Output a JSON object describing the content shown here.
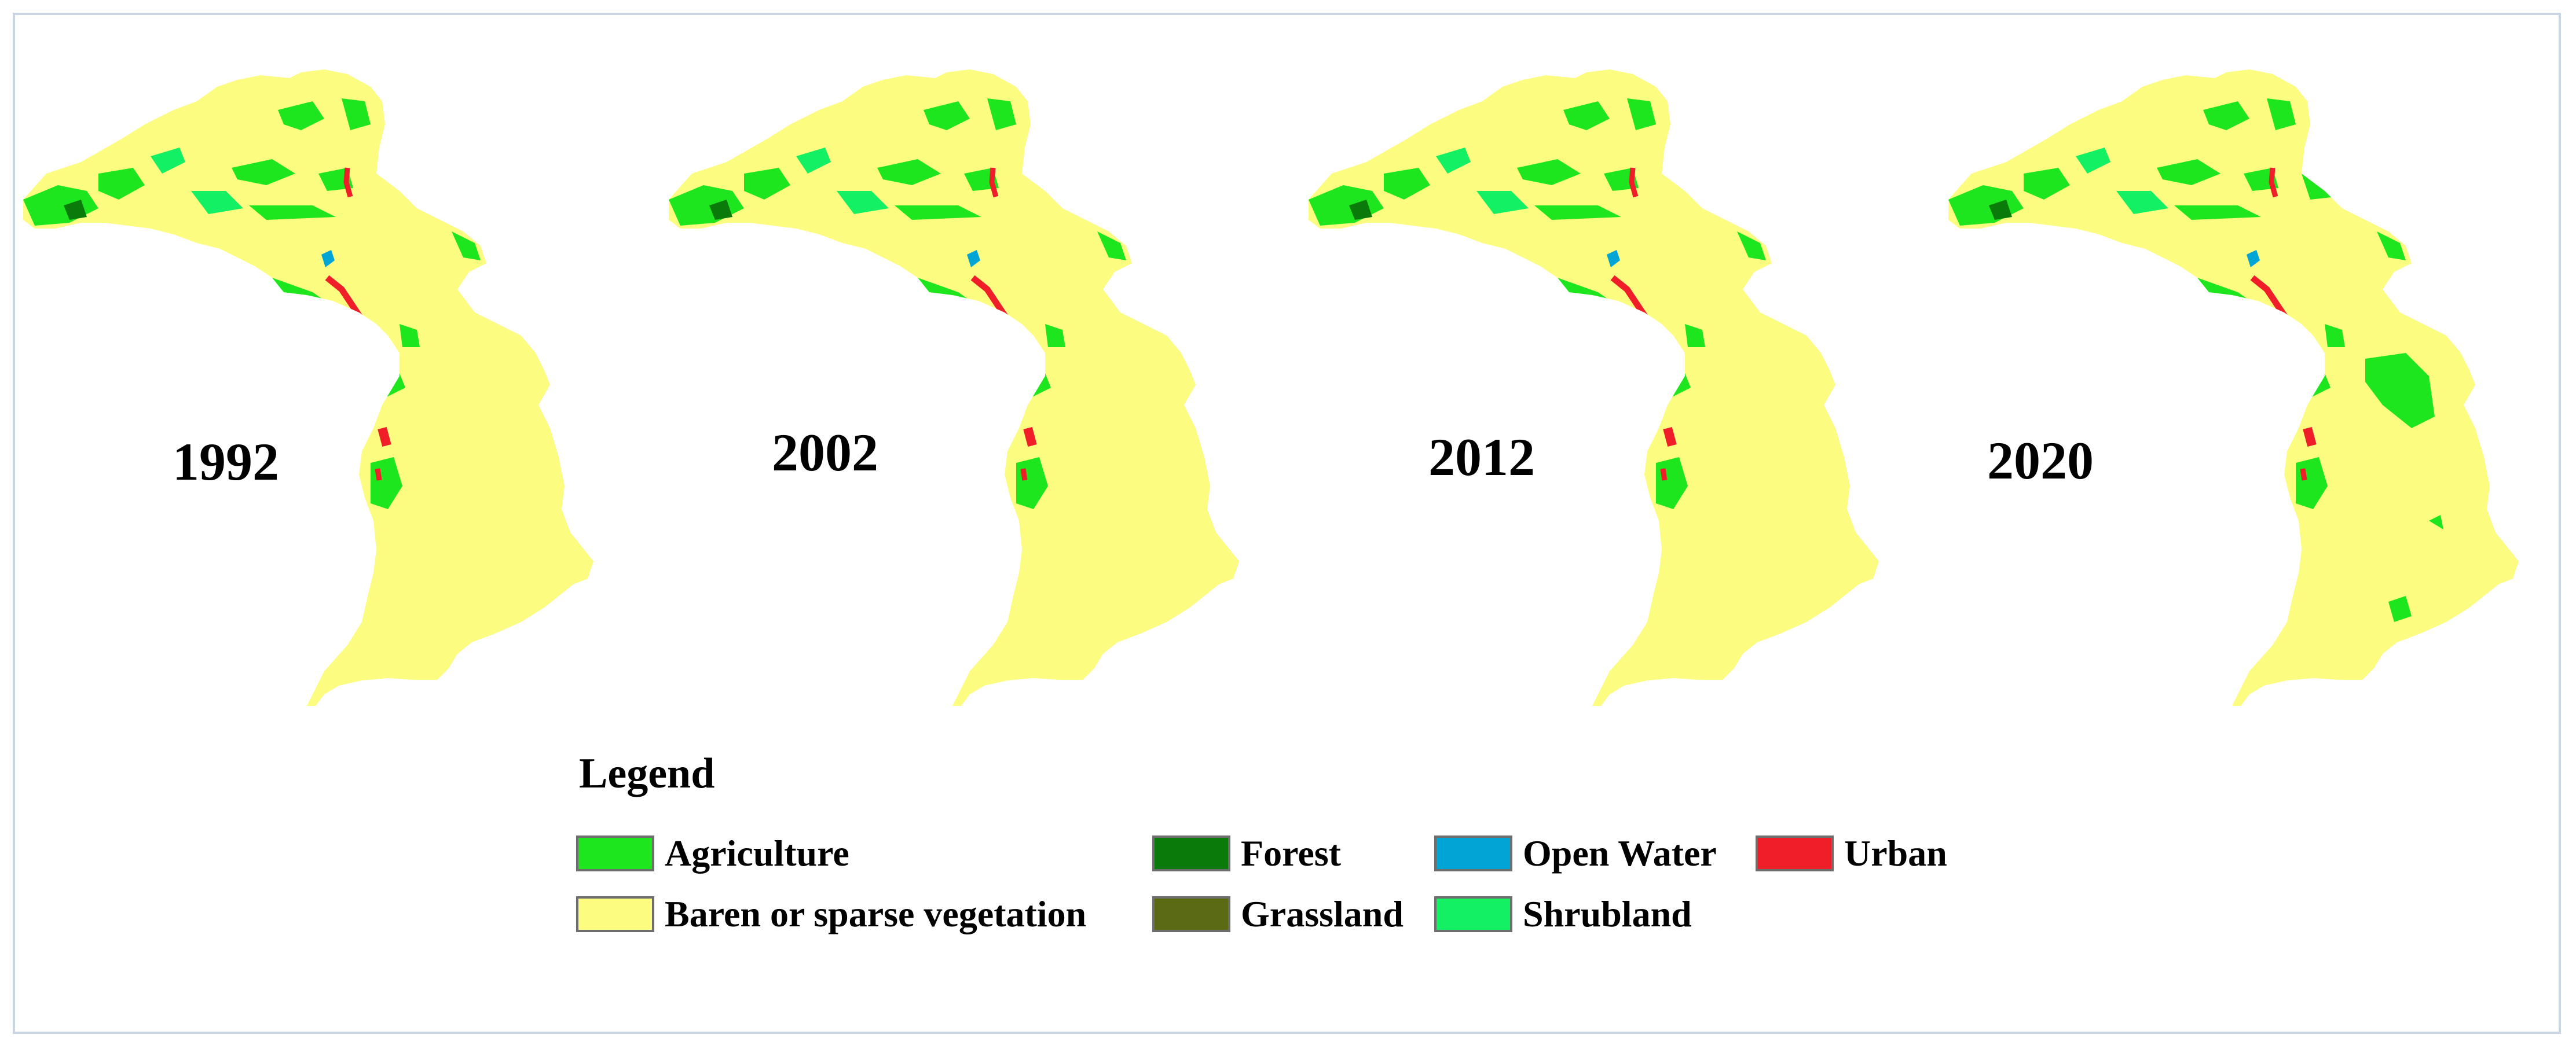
{
  "maps": [
    {
      "year": "1992"
    },
    {
      "year": "2002"
    },
    {
      "year": "2012"
    },
    {
      "year": "2020"
    }
  ],
  "legend": {
    "title": "Legend",
    "items": [
      {
        "label": "Agriculture",
        "color": "#1ee61e"
      },
      {
        "label": "Forest",
        "color": "#0a7a0a"
      },
      {
        "label": "Open Water",
        "color": "#00a5d6"
      },
      {
        "label": "Urban",
        "color": "#f01e28"
      },
      {
        "label": "Baren or sparse vegetation",
        "color": "#fcfc80"
      },
      {
        "label": "Grassland",
        "color": "#5a6b14"
      },
      {
        "label": "Shrubland",
        "color": "#14f064"
      }
    ]
  }
}
